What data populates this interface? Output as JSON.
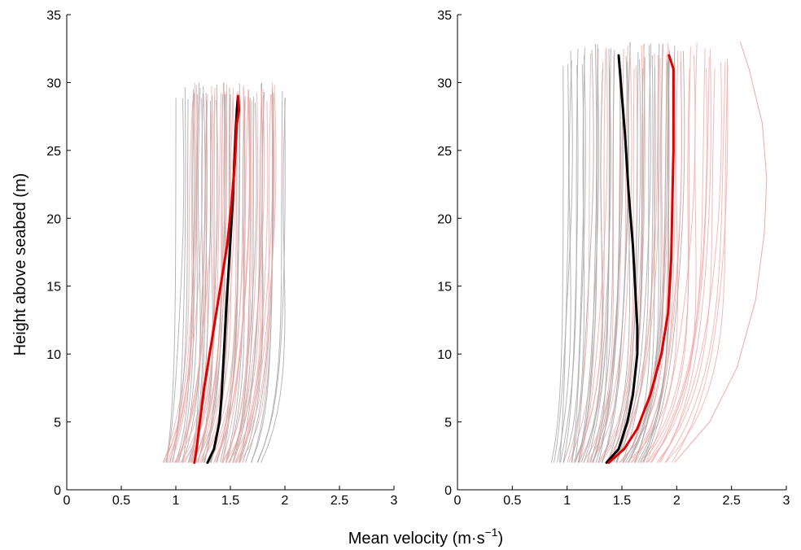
{
  "labels": {
    "ylabel": "Height above seabed (m)",
    "xlabel_main": "Mean velocity (m·s",
    "xlabel_exp": "−1",
    "xlabel_close": ")"
  },
  "colors": {
    "grey": "#a9a9a9",
    "pink": "#f4a6a6",
    "black": "#000000",
    "red": "#e00000"
  },
  "chart_data": [
    {
      "type": "line",
      "panel": "left",
      "xlim": [
        0,
        3
      ],
      "ylim": [
        0,
        35
      ],
      "xticks": [
        "0",
        "0.5",
        "1",
        "1.5",
        "2",
        "2.5",
        "3"
      ],
      "yticks": [
        "0",
        "5",
        "10",
        "15",
        "20",
        "25",
        "30",
        "35"
      ],
      "mean_series": [
        {
          "color": "black",
          "points": [
            [
              1.29,
              2
            ],
            [
              1.35,
              3
            ],
            [
              1.4,
              5
            ],
            [
              1.42,
              7
            ],
            [
              1.44,
              10
            ],
            [
              1.46,
              13
            ],
            [
              1.49,
              17
            ],
            [
              1.52,
              21
            ],
            [
              1.54,
              25
            ],
            [
              1.56,
              28
            ],
            [
              1.57,
              29
            ]
          ]
        },
        {
          "color": "red",
          "points": [
            [
              1.17,
              2
            ],
            [
              1.19,
              3
            ],
            [
              1.22,
              5
            ],
            [
              1.26,
              7.5
            ],
            [
              1.31,
              10
            ],
            [
              1.37,
              13
            ],
            [
              1.42,
              15.5
            ],
            [
              1.47,
              18
            ],
            [
              1.51,
              21
            ],
            [
              1.54,
              24
            ],
            [
              1.56,
              27
            ],
            [
              1.58,
              28
            ],
            [
              1.57,
              29
            ]
          ]
        }
      ],
      "ensemble": {
        "grey": {
          "count": 38,
          "x_bottom": [
            0.9,
            1.78
          ],
          "x_top": [
            1.02,
            2.02
          ],
          "y_start": 2,
          "y_top": [
            28.5,
            30
          ]
        },
        "pink": {
          "count": 40,
          "x_bottom": [
            0.86,
            1.62
          ],
          "x_top": [
            1.15,
            1.92
          ],
          "y_start": 2,
          "y_top": [
            28.5,
            30
          ]
        }
      }
    },
    {
      "type": "line",
      "panel": "right",
      "xlim": [
        0,
        3
      ],
      "ylim": [
        0,
        35
      ],
      "xticks": [
        "0",
        "0.5",
        "1",
        "1.5",
        "2",
        "2.5",
        "3"
      ],
      "yticks": [
        "0",
        "5",
        "10",
        "15",
        "20",
        "25",
        "30",
        "35"
      ],
      "mean_series": [
        {
          "color": "black",
          "points": [
            [
              1.36,
              2
            ],
            [
              1.47,
              3
            ],
            [
              1.55,
              5
            ],
            [
              1.6,
              7
            ],
            [
              1.64,
              10
            ],
            [
              1.64,
              12
            ],
            [
              1.62,
              15
            ],
            [
              1.6,
              18
            ],
            [
              1.56,
              22
            ],
            [
              1.53,
              26
            ],
            [
              1.5,
              29
            ],
            [
              1.48,
              31
            ],
            [
              1.47,
              32
            ]
          ]
        },
        {
          "color": "red",
          "points": [
            [
              1.38,
              2
            ],
            [
              1.52,
              3
            ],
            [
              1.64,
              4.5
            ],
            [
              1.76,
              7
            ],
            [
              1.86,
              10
            ],
            [
              1.92,
              13
            ],
            [
              1.95,
              17
            ],
            [
              1.96,
              21
            ],
            [
              1.97,
              25
            ],
            [
              1.97,
              28.5
            ],
            [
              1.97,
              31
            ],
            [
              1.93,
              32
            ]
          ]
        }
      ],
      "ensemble": {
        "grey": {
          "count": 40,
          "x_bottom": [
            0.85,
            1.72
          ],
          "x_top": [
            0.95,
            2.05
          ],
          "y_start": 2,
          "y_top": [
            31,
            33
          ]
        },
        "pink": {
          "count": 40,
          "x_bottom": [
            1.0,
            1.95
          ],
          "x_top": [
            1.25,
            2.5
          ],
          "y_start": 2,
          "y_top": [
            31,
            33
          ]
        }
      },
      "outlier": {
        "color": "pink",
        "points": [
          [
            1.98,
            2
          ],
          [
            2.3,
            5
          ],
          [
            2.55,
            9
          ],
          [
            2.72,
            14
          ],
          [
            2.8,
            19
          ],
          [
            2.82,
            23
          ],
          [
            2.78,
            27
          ],
          [
            2.66,
            31
          ],
          [
            2.58,
            33
          ]
        ]
      }
    }
  ]
}
